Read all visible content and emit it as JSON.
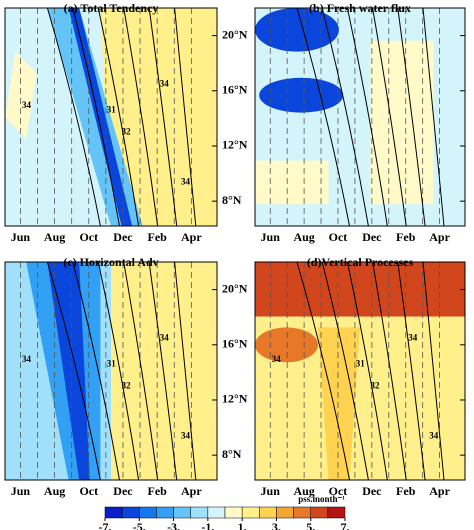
{
  "chart_data": [
    {
      "type": "heatmap",
      "title": "(a) Total Tendency",
      "categories": [
        "Jun",
        "Aug",
        "Oct",
        "Dec",
        "Feb",
        "Apr"
      ],
      "ylim": [
        6.2,
        22
      ],
      "yticks": [
        {
          "value": 8,
          "label": "8°N"
        },
        {
          "value": 12,
          "label": "12°N"
        },
        {
          "value": 16,
          "label": "16°N"
        },
        {
          "value": 20,
          "label": "20°N"
        }
      ],
      "annotations": [
        "34",
        "31",
        "32",
        "34",
        "34"
      ]
    },
    {
      "type": "heatmap",
      "title": "(b) Fresh water flux",
      "categories": [
        "Jun",
        "Aug",
        "Oct",
        "Dec",
        "Feb",
        "Apr"
      ],
      "ylim": [
        6.2,
        22
      ],
      "yticks": [
        {
          "value": 8,
          "label": "8°N"
        },
        {
          "value": 12,
          "label": "12°N"
        },
        {
          "value": 16,
          "label": "16°N"
        },
        {
          "value": 20,
          "label": "20°N"
        }
      ],
      "annotations": []
    },
    {
      "type": "heatmap",
      "title": "(c) Horizontal Adv",
      "categories": [
        "Jun",
        "Aug",
        "Oct",
        "Dec",
        "Feb",
        "Apr"
      ],
      "ylim": [
        6.2,
        22
      ],
      "yticks": [
        {
          "value": 8,
          "label": "8°N"
        },
        {
          "value": 12,
          "label": "12°N"
        },
        {
          "value": 16,
          "label": "16°N"
        },
        {
          "value": 20,
          "label": "20°N"
        }
      ],
      "annotations": [
        "34",
        "31",
        "32",
        "34",
        "34"
      ]
    },
    {
      "type": "heatmap",
      "title": "(d)Vertical Processes",
      "categories": [
        "Jun",
        "Aug",
        "Oct",
        "Dec",
        "Feb",
        "Apr"
      ],
      "ylim": [
        6.2,
        22
      ],
      "yticks": [
        {
          "value": 8,
          "label": "8°N"
        },
        {
          "value": 12,
          "label": "12°N"
        },
        {
          "value": 16,
          "label": "16°N"
        },
        {
          "value": 20,
          "label": "20°N"
        }
      ],
      "annotations": [
        "34",
        "31",
        "32",
        "34",
        "34"
      ]
    },
    {
      "type": "colorbar",
      "unit": "pss.month⁻¹",
      "xlim": [
        -7,
        7
      ],
      "colors": [
        "#0a1ec8",
        "#0a46dc",
        "#1478ec",
        "#32a0f4",
        "#64c4f8",
        "#a0e0fa",
        "#d4f4fc",
        "#fffac8",
        "#fff08c",
        "#ffd250",
        "#f5a532",
        "#e67828",
        "#d2461e",
        "#b41414"
      ],
      "xticks": [
        {
          "value": -7,
          "label": "-7."
        },
        {
          "value": -5,
          "label": "-5."
        },
        {
          "value": -3,
          "label": "-3."
        },
        {
          "value": -1,
          "label": "-1."
        },
        {
          "value": 1,
          "label": "1."
        },
        {
          "value": 3,
          "label": "3."
        },
        {
          "value": 5,
          "label": "5."
        },
        {
          "value": 7,
          "label": "7."
        }
      ]
    }
  ]
}
